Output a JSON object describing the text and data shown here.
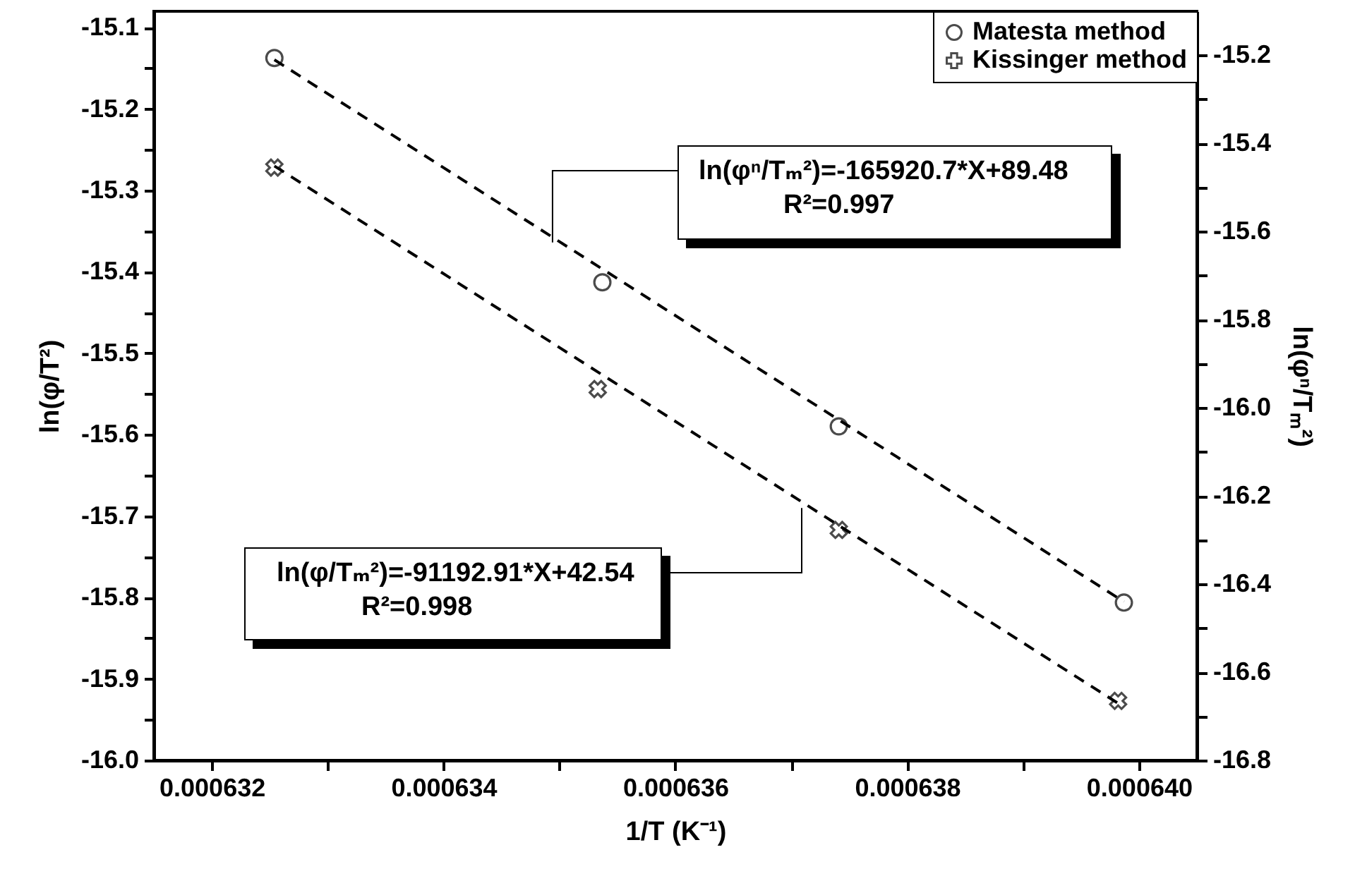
{
  "chart_data": {
    "type": "scatter",
    "xlabel": "1/T (K⁻¹)",
    "ylabel": "ln(φ/T²)",
    "y2label": "ln(φⁿ/Tₘ²)",
    "xlim": [
      0.0006315,
      0.0006405
    ],
    "xticks": [
      0.000632,
      {
        "value": 0.000633,
        "label": null
      },
      0.000634,
      {
        "value": 0.000635,
        "label": null
      },
      0.000636,
      {
        "value": 0.000637,
        "label": null
      },
      0.000638,
      {
        "value": 0.000639,
        "label": null
      },
      {
        "value": 0.00064,
        "label": "0.000640"
      }
    ],
    "ylim": [
      -16.0,
      -15.08
    ],
    "yticks": [
      {
        "value": -16,
        "label": "-16.0"
      },
      {
        "value": -15.95,
        "label": null
      },
      -15.9,
      {
        "value": -15.85,
        "label": null
      },
      -15.8,
      {
        "value": -15.75,
        "label": null
      },
      -15.7,
      {
        "value": -15.65,
        "label": null
      },
      -15.6,
      {
        "value": -15.55,
        "label": null
      },
      -15.5,
      {
        "value": -15.45,
        "label": null
      },
      -15.4,
      {
        "value": -15.35,
        "label": null
      },
      -15.3,
      {
        "value": -15.25,
        "label": null
      },
      -15.2,
      {
        "value": -15.15,
        "label": null
      },
      -15.1
    ],
    "y2lim": [
      -16.8,
      -15.1
    ],
    "y2ticks": [
      -16.8,
      {
        "value": -16.7,
        "label": null
      },
      -16.6,
      {
        "value": -16.5,
        "label": null
      },
      -16.4,
      {
        "value": -16.3,
        "label": null
      },
      -16.2,
      {
        "value": -16.1,
        "label": null
      },
      {
        "value": -16,
        "label": "-16.0"
      },
      {
        "value": -15.9,
        "label": null
      },
      -15.8,
      {
        "value": -15.7,
        "label": null
      },
      -15.6,
      {
        "value": -15.5,
        "label": null
      },
      -15.4,
      {
        "value": -15.3,
        "label": null
      },
      -15.2
    ],
    "legend": "top right",
    "series": [
      {
        "name": "Matesta method",
        "axis": "y2",
        "marker": "circle",
        "color": "#000000",
        "x": [
          0.00063254,
          0.00063537,
          0.00063741,
          0.00063987
        ],
        "values": [
          -15.206,
          -15.715,
          -16.042,
          -16.442
        ]
      },
      {
        "name": "Kissinger method",
        "marker": "cross",
        "color": "#000000",
        "x": [
          0.00063254,
          0.00063533,
          0.00063741,
          0.00063982
        ],
        "values": [
          -15.272,
          -15.544,
          -15.717,
          -15.927
        ]
      },
      {
        "type": "line",
        "axis": "y2",
        "line_style": "dashed",
        "color": "#000000",
        "x": [
          0.00063254,
          0.00063987
        ],
        "values": [
          -15.21,
          -16.44
        ]
      },
      {
        "type": "line",
        "line_style": "dashed",
        "color": "#000000",
        "x": [
          0.00063254,
          0.00063982
        ],
        "values": [
          -15.27,
          -15.93
        ]
      }
    ],
    "annotations": [
      {
        "text": "ln(φⁿ/Tₘ²)=-165920.7*X+89.48",
        "x": 0.00063494,
        "y": -15.364
      },
      "R²=0.997",
      {
        "text": "ln(φ/Tₘ²)=-91192.91*X+42.54",
        "x": 0.00063709,
        "y": -15.69
      },
      "R²=0.998"
    ]
  }
}
